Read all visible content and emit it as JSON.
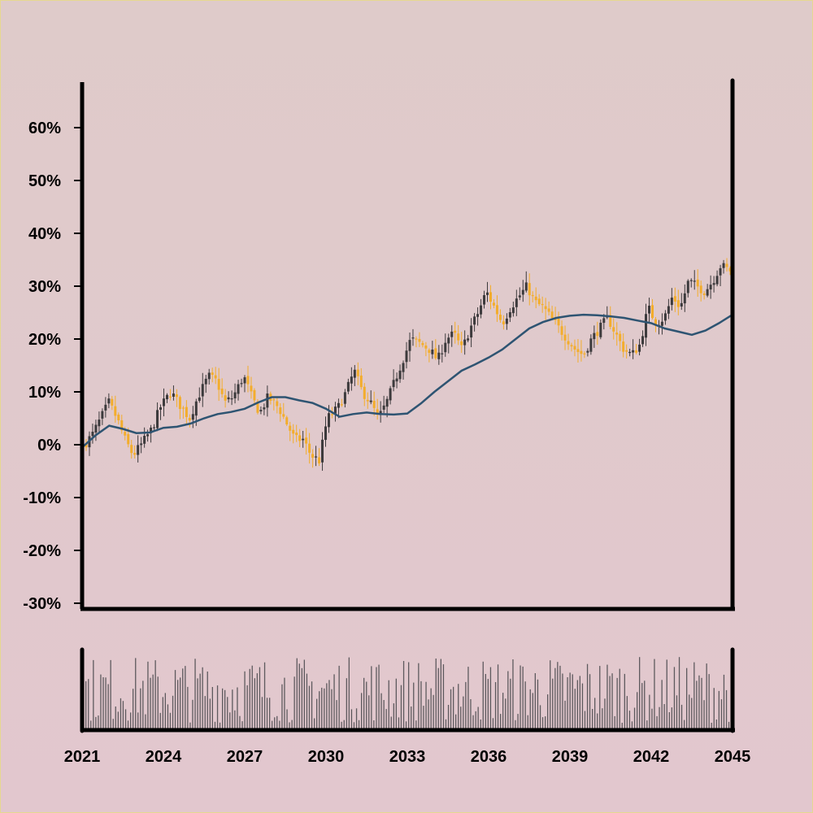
{
  "colors": {
    "background": "#e0c9cc",
    "up_candle": "#f3ad2c",
    "down_candle": "#3c3a3c",
    "moving_average": "#2e5472",
    "volume_bar": "#5e5a5e",
    "axis": "#000000"
  },
  "chart_data": {
    "type": "candlestick",
    "title": "",
    "xlabel": "",
    "ylabel": "",
    "y_unit": "%",
    "ylim": [
      -30,
      65
    ],
    "y_ticks": [
      -30,
      -20,
      -10,
      0,
      10,
      20,
      30,
      40,
      50,
      60
    ],
    "y_tick_labels": [
      "-30%",
      "-20%",
      "-10%",
      "0%",
      "10%",
      "20%",
      "30%",
      "40%",
      "50%",
      "60%"
    ],
    "xlim": [
      2021,
      2045
    ],
    "x_ticks": [
      2021,
      2024,
      2027,
      2030,
      2033,
      2036,
      2039,
      2042,
      2045
    ],
    "x_tick_labels": [
      "2021",
      "2024",
      "2027",
      "2030",
      "2033",
      "2036",
      "2039",
      "2042",
      "2045"
    ],
    "grid": false,
    "legend": "none",
    "price_path": {
      "x": [
        2021.0,
        2021.3,
        2021.6,
        2021.9,
        2022.2,
        2022.5,
        2022.8,
        2023.1,
        2023.5,
        2023.8,
        2024.2,
        2024.6,
        2024.9,
        2025.2,
        2025.6,
        2025.9,
        2026.2,
        2026.5,
        2026.9,
        2027.2,
        2027.5,
        2027.8,
        2028.2,
        2028.5,
        2028.8,
        2029.1,
        2029.4,
        2029.7,
        2030.0,
        2030.4,
        2030.7,
        2031.0,
        2031.3,
        2031.6,
        2031.9,
        2032.2,
        2032.5,
        2032.8,
        2033.1,
        2033.5,
        2033.8,
        2034.1,
        2034.4,
        2034.7,
        2035.0,
        2035.3,
        2035.6,
        2035.9,
        2036.2,
        2036.5,
        2036.8,
        2037.1,
        2037.4,
        2037.7,
        2038.0,
        2038.3,
        2038.6,
        2038.9,
        2039.2,
        2039.5,
        2039.8,
        2040.1,
        2040.4,
        2040.7,
        2041.0,
        2041.3,
        2041.6,
        2041.9,
        2042.2,
        2042.5,
        2042.8,
        2043.1,
        2043.4,
        2043.7,
        2044.0,
        2044.3,
        2044.6,
        2044.9
      ],
      "y": [
        0,
        2,
        5,
        8,
        5,
        1,
        -2,
        0,
        3,
        7,
        10,
        7,
        5,
        9,
        13,
        12,
        8,
        9,
        13,
        9,
        6,
        9,
        7,
        4,
        1,
        1,
        -2,
        -3,
        5,
        7,
        10,
        14,
        10,
        8,
        5,
        8,
        12,
        16,
        20,
        19,
        18,
        16,
        20,
        21,
        18,
        22,
        25,
        29,
        26,
        23,
        26,
        28,
        30,
        27,
        26,
        24,
        22,
        20,
        18,
        17,
        20,
        22,
        24,
        21,
        18,
        17,
        19,
        26,
        23,
        24,
        28,
        26,
        31,
        30,
        29,
        31,
        34,
        33
      ]
    },
    "moving_average": {
      "x": [
        2021.0,
        2021.5,
        2022.0,
        2022.5,
        2023.0,
        2023.5,
        2024.0,
        2024.5,
        2025.0,
        2025.5,
        2026.0,
        2026.5,
        2027.0,
        2027.5,
        2028.0,
        2028.5,
        2029.0,
        2029.5,
        2030.0,
        2030.5,
        2031.0,
        2031.5,
        2032.0,
        2032.5,
        2033.0,
        2033.5,
        2034.0,
        2034.5,
        2035.0,
        2035.5,
        2036.0,
        2036.5,
        2037.0,
        2037.5,
        2038.0,
        2038.5,
        2039.0,
        2039.5,
        2040.0,
        2040.5,
        2041.0,
        2041.5,
        2042.0,
        2042.5,
        2043.0,
        2043.5,
        2044.0,
        2044.5,
        2045.0
      ],
      "y": [
        -0.5,
        1.8,
        3.6,
        3.0,
        2.2,
        2.3,
        3.2,
        3.4,
        4.0,
        5.0,
        5.8,
        6.2,
        6.8,
        8.0,
        9.0,
        9.0,
        8.4,
        7.9,
        6.8,
        5.3,
        5.8,
        6.1,
        5.8,
        5.7,
        5.9,
        7.8,
        10.0,
        12.0,
        14.0,
        15.2,
        16.5,
        18.0,
        20.0,
        22.0,
        23.2,
        24.0,
        24.4,
        24.6,
        24.5,
        24.3,
        24.0,
        23.5,
        23.0,
        22.0,
        21.4,
        20.8,
        21.6,
        23.0,
        24.6
      ]
    }
  }
}
